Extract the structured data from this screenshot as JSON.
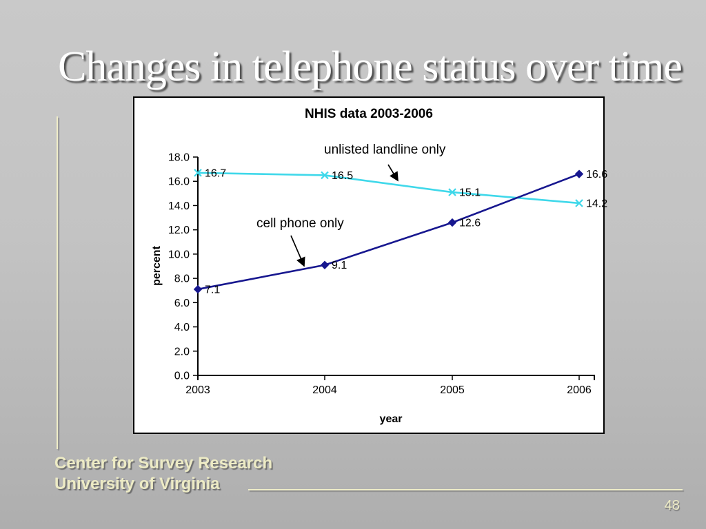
{
  "slide": {
    "title": "Changes in telephone status over time",
    "footer": {
      "line1": "Center for Survey Research",
      "line2": "University of Virginia"
    },
    "page_number": "48",
    "accent_color": "#efedc8",
    "background_color": "#c3c3c3"
  },
  "chart_data": {
    "type": "line",
    "title": "NHIS data 2003-2006",
    "xlabel": "year",
    "ylabel": "percent",
    "categories": [
      "2003",
      "2004",
      "2005",
      "2006"
    ],
    "ylim": [
      0,
      18
    ],
    "ytick_step": 2,
    "ytick_decimals": 1,
    "data_label_decimals": 1,
    "grid": false,
    "legend_position": "inline-annotations",
    "plot_bg": "#ffffff",
    "axis_color": "#000000",
    "series": [
      {
        "name": "unlisted landline only",
        "marker": "x",
        "color": "#3fd8ea",
        "values": [
          16.7,
          16.5,
          15.1,
          14.2
        ]
      },
      {
        "name": "cell phone only",
        "marker": "diamond",
        "color": "#17178f",
        "values": [
          7.1,
          9.1,
          12.6,
          16.6
        ]
      }
    ]
  }
}
